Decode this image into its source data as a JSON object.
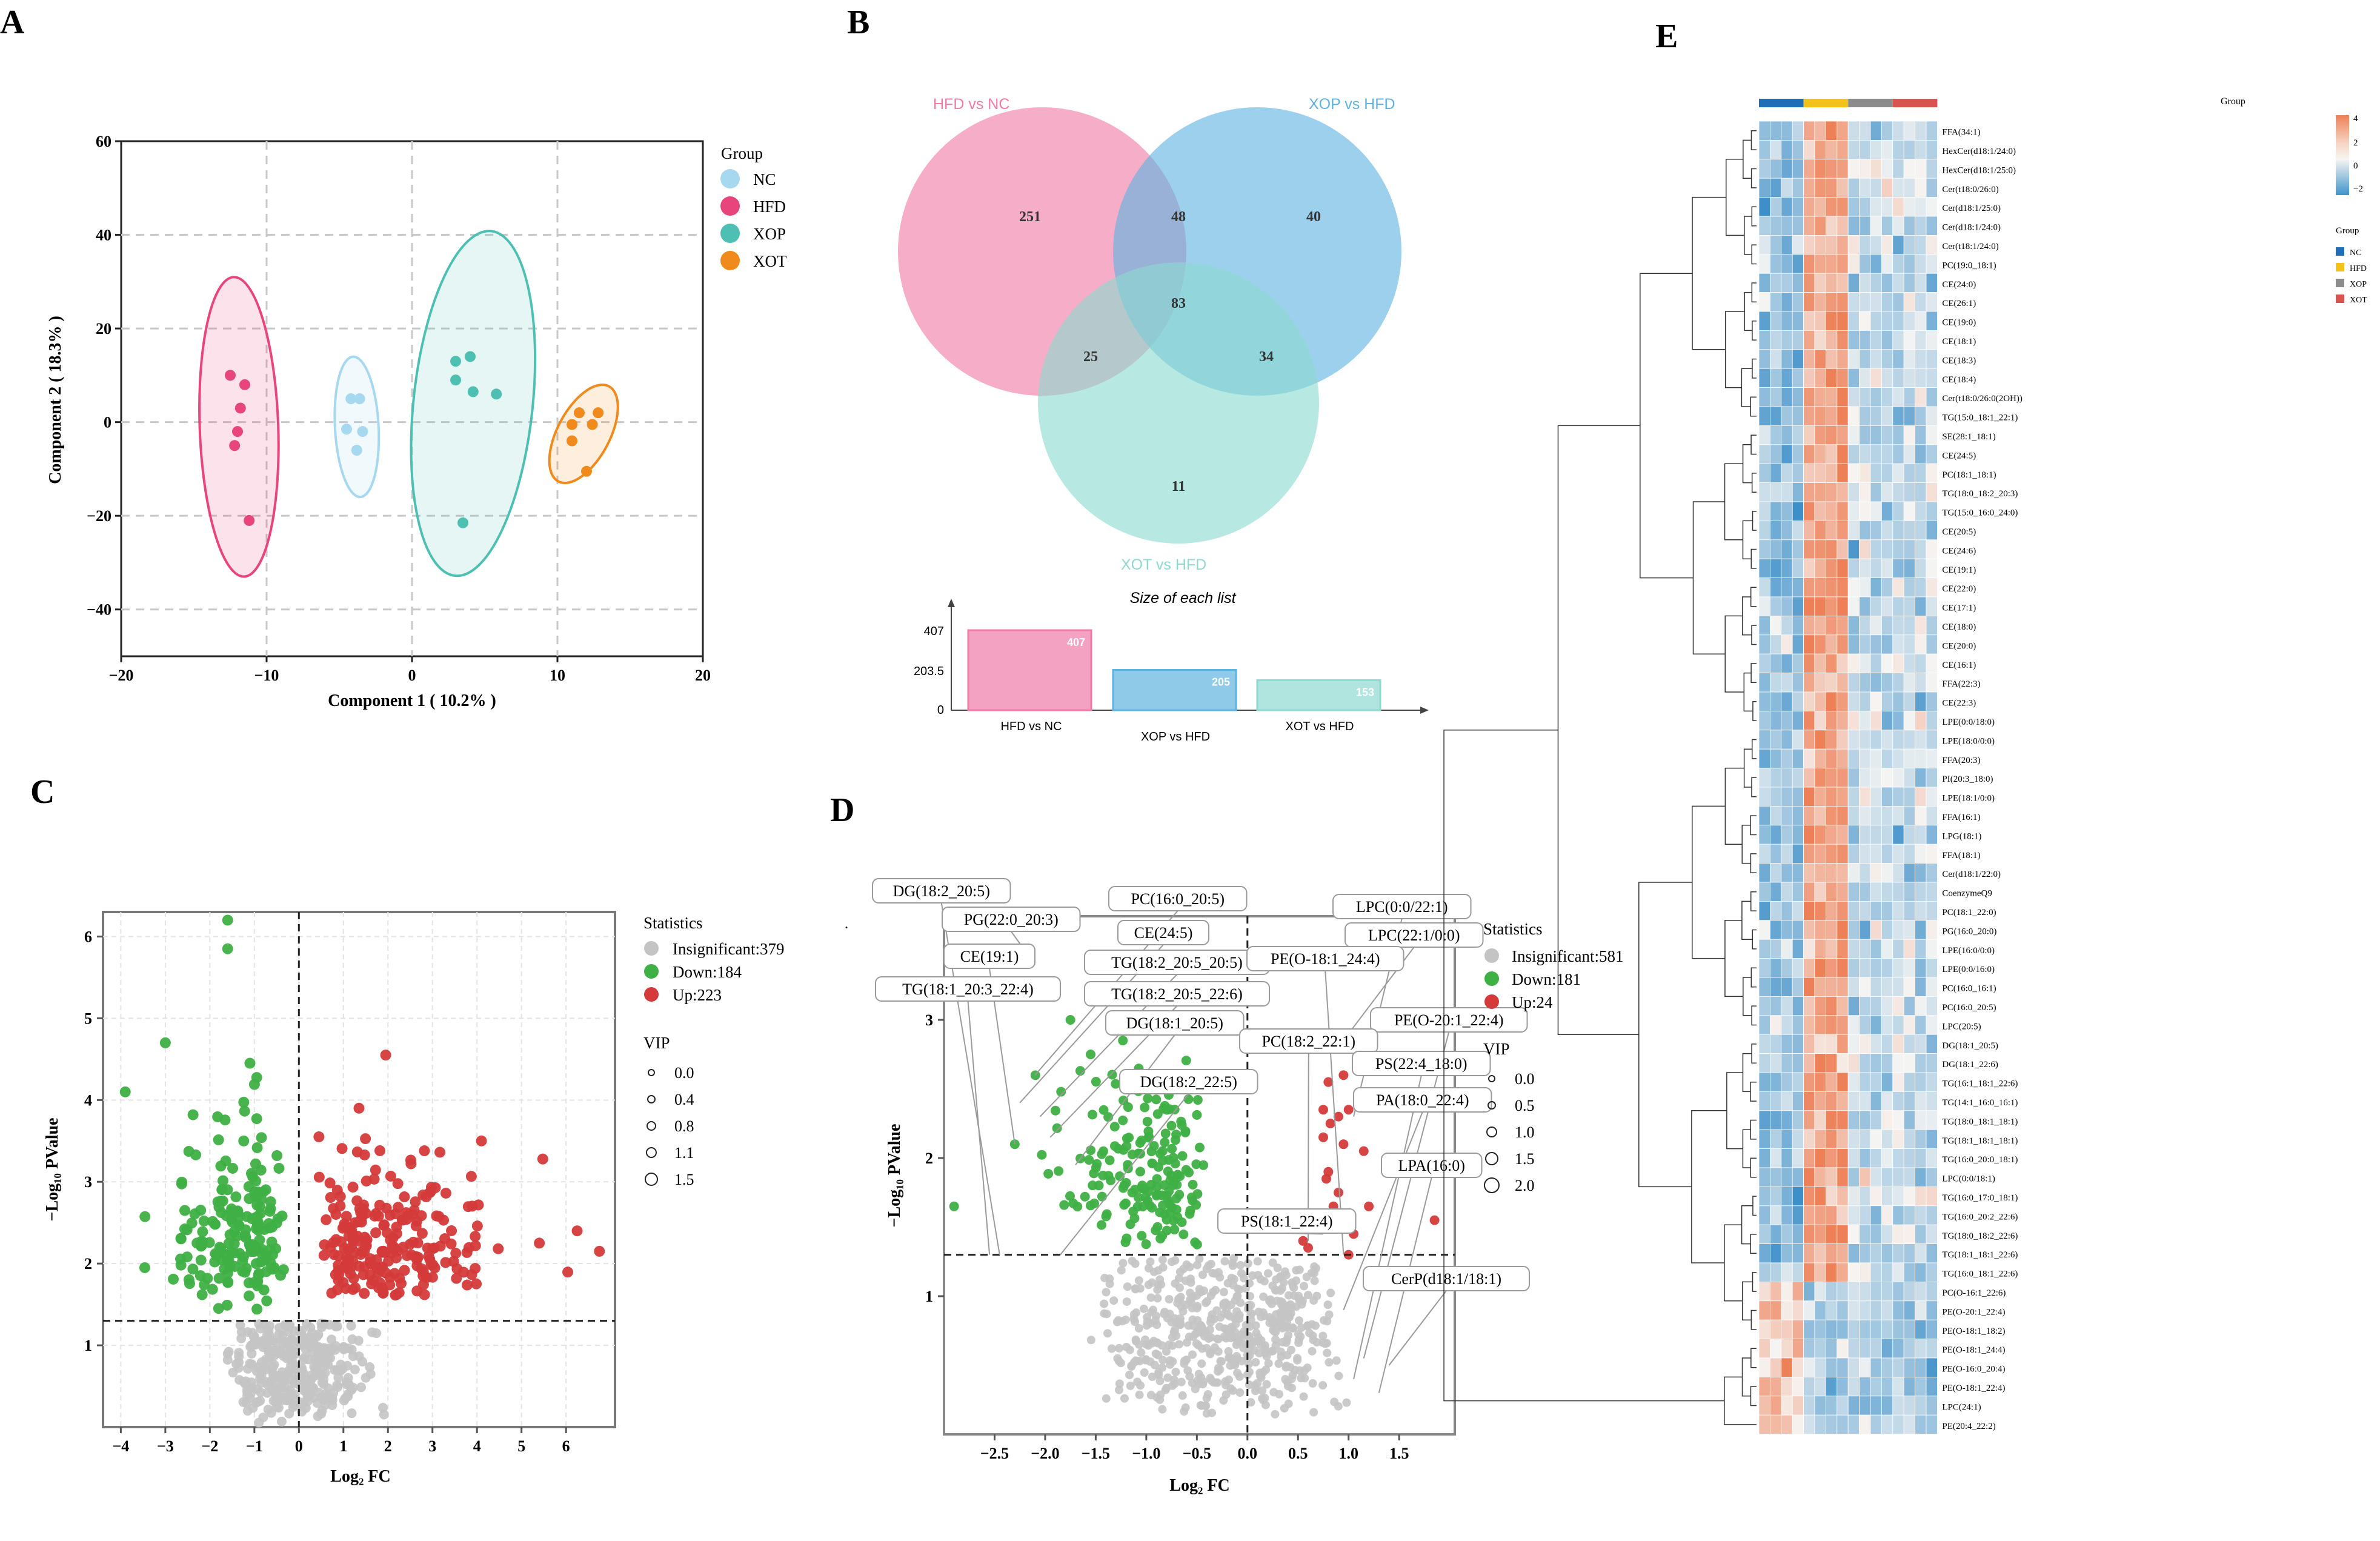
{
  "panel_letters": {
    "a": "A",
    "b": "B",
    "c": "C",
    "d": "D",
    "e": "E"
  },
  "colors": {
    "nc": "#a6d8f0",
    "hfd": "#e8457c",
    "xop": "#4ec0b3",
    "xot": "#f08a1c",
    "up": "#d43a3a",
    "down": "#3fb044",
    "insig": "#c4c4c4",
    "venn_hfd": "#f07ba6",
    "venn_xop": "#5fb3e0",
    "venn_xot": "#8ddad0",
    "hm_nc": "#1f6fb8",
    "hm_hfd": "#f2c21b",
    "hm_xop": "#8c8c8c",
    "hm_xot": "#d9534f"
  },
  "chart_data": [
    {
      "id": "A",
      "type": "scatter",
      "xlabel": "Component 1 ( 10.2% )",
      "ylabel": "Component 2 ( 18.3% )",
      "xlim": [
        -20,
        20
      ],
      "ylim": [
        -50,
        60
      ],
      "xticks": [
        "−20",
        "−10",
        "0",
        "10",
        "20"
      ],
      "yticks": [
        "60",
        "40",
        "20",
        "0",
        "−20",
        "−40"
      ],
      "legend_title": "Group",
      "legend_labels": [
        "NC",
        "HFD",
        "XOP",
        "XOT"
      ],
      "series": [
        {
          "name": "NC",
          "points": [
            [
              -4.2,
              5
            ],
            [
              -3.6,
              5
            ],
            [
              -3.4,
              -2
            ],
            [
              -4.5,
              -1.5
            ],
            [
              -3.8,
              -6
            ]
          ],
          "ellipse": {
            "cx": -3.8,
            "cy": -1,
            "rx": 1.5,
            "ry": 15,
            "angle": -3
          }
        },
        {
          "name": "HFD",
          "points": [
            [
              -12.5,
              10
            ],
            [
              -11.5,
              8
            ],
            [
              -11.8,
              3
            ],
            [
              -12,
              -2
            ],
            [
              -12.2,
              -5
            ],
            [
              -11.2,
              -21
            ]
          ],
          "ellipse": {
            "cx": -11.9,
            "cy": -1,
            "rx": 2.7,
            "ry": 32,
            "angle": -2
          }
        },
        {
          "name": "XOP",
          "points": [
            [
              3,
              13
            ],
            [
              4,
              14
            ],
            [
              3,
              9
            ],
            [
              4.2,
              6.5
            ],
            [
              5.8,
              6
            ],
            [
              3.5,
              -21.5
            ]
          ],
          "ellipse": {
            "cx": 4.2,
            "cy": 4,
            "rx": 4.1,
            "ry": 37,
            "angle": 6
          }
        },
        {
          "name": "XOT",
          "points": [
            [
              11.5,
              2
            ],
            [
              12.8,
              2
            ],
            [
              12.4,
              -0.5
            ],
            [
              11,
              -0.5
            ],
            [
              11,
              -4
            ],
            [
              12,
              -10.5
            ]
          ],
          "ellipse": {
            "cx": 11.8,
            "cy": -2.5,
            "rx": 1.8,
            "ry": 11.5,
            "angle": 28
          }
        }
      ]
    },
    {
      "id": "B",
      "type": "venn",
      "sets": [
        {
          "name": "HFD vs NC",
          "size": 407
        },
        {
          "name": "XOP vs HFD",
          "size": 205
        },
        {
          "name": "XOT vs HFD",
          "size": 153
        }
      ],
      "regions": {
        "hfd_only": "251",
        "xop_only": "40",
        "xot_only": "11",
        "hfd_xop": "48",
        "hfd_xot": "25",
        "xop_xot": "34",
        "all": "83"
      },
      "bar_title": "Size of each list",
      "bar_yticks": [
        "407",
        "203.5",
        "0"
      ],
      "bars": [
        {
          "label": "HFD vs NC",
          "value": 407
        },
        {
          "label": "XOP vs HFD",
          "value": 205
        },
        {
          "label": "XOT vs HFD",
          "value": 153
        }
      ]
    },
    {
      "id": "C",
      "type": "volcano",
      "xlabel": "Log₂ FC",
      "ylabel": "−Log₁₀ PValue",
      "xlim": [
        -4.4,
        7.1
      ],
      "ylim": [
        0,
        6.3
      ],
      "xticks": [
        "−4",
        "−3",
        "−2",
        "−1",
        "0",
        "1",
        "2",
        "3",
        "4",
        "5",
        "6"
      ],
      "yticks": [
        "1",
        "2",
        "3",
        "4",
        "5",
        "6"
      ],
      "threshold_p": 1.3,
      "legend_title": "Statistics",
      "legend_labels": [
        "Insignificant:379",
        "Down:184",
        "Up:223"
      ],
      "vip_title": "VIP",
      "vip_labels": [
        "0.0",
        "0.4",
        "0.8",
        "1.1",
        "1.5"
      ],
      "counts": {
        "insignificant": 379,
        "down": 184,
        "up": 223
      }
    },
    {
      "id": "D",
      "type": "volcano",
      "xlabel": "Log₂ FC",
      "ylabel": "−Log₁₀ PValue",
      "xlim": [
        -3.0,
        2.05
      ],
      "ylim": [
        0,
        3.75
      ],
      "xticks": [
        "−2.5",
        "−2.0",
        "−1.5",
        "−1.0",
        "−0.5",
        "0.0",
        "0.5",
        "1.0",
        "1.5"
      ],
      "yticks": [
        "1",
        "2",
        "3"
      ],
      "threshold_p": 1.3,
      "legend_title": "Statistics",
      "legend_labels": [
        "Insignificant:581",
        "Down:181",
        "Up:24"
      ],
      "vip_title": "VIP",
      "vip_labels": [
        "0.0",
        "0.5",
        "1.0",
        "1.5",
        "2.0"
      ],
      "counts": {
        "insignificant": 581,
        "down": 181,
        "up": 24
      },
      "annotations": [
        "DG(18:2_20:5)",
        "PG(22:0_20:3)",
        "CE(19:1)",
        "TG(18:1_20:3_22:4)",
        "PC(16:0_20:5)",
        "CE(24:5)",
        "TG(18:2_20:5_20:5)",
        "TG(18:2_20:5_22:6)",
        "DG(18:1_20:5)",
        "DG(18:2_22:5)",
        "LPC(0:0/22:1)",
        "LPC(22:1/0:0)",
        "PE(O-18:1_24:4)",
        "PE(O-20:1_22:4)",
        "PC(18:2_22:1)",
        "PS(22:4_18:0)",
        "PA(18:0_22:4)",
        "LPA(16:0)",
        "PS(18:1_22:4)",
        "CerP(d18:1/18:1)"
      ]
    },
    {
      "id": "E",
      "type": "heatmap",
      "group_label": "Group",
      "legend_ticks": [
        "4",
        "2",
        "0",
        "−2"
      ],
      "groups": [
        "NC",
        "HFD",
        "XOP",
        "XOT"
      ],
      "rows": [
        "FFA(34:1)",
        "HexCer(d18:1/24:0)",
        "HexCer(d18:1/25:0)",
        "Cer(t18:0/26:0)",
        "Cer(d18:1/25:0)",
        "Cer(d18:1/24:0)",
        "Cer(t18:1/24:0)",
        "PC(19:0_18:1)",
        "CE(24:0)",
        "CE(26:1)",
        "CE(19:0)",
        "CE(18:1)",
        "CE(18:3)",
        "CE(18:4)",
        "Cer(t18:0/26:0(2OH))",
        "TG(15:0_18:1_22:1)",
        "SE(28:1_18:1)",
        "CE(24:5)",
        "PC(18:1_18:1)",
        "TG(18:0_18:2_20:3)",
        "TG(15:0_16:0_24:0)",
        "CE(20:5)",
        "CE(24:6)",
        "CE(19:1)",
        "CE(22:0)",
        "CE(17:1)",
        "CE(18:0)",
        "CE(20:0)",
        "CE(16:1)",
        "FFA(22:3)",
        "CE(22:3)",
        "LPE(0:0/18:0)",
        "LPE(18:0/0:0)",
        "FFA(20:3)",
        "PI(20:3_18:0)",
        "LPE(18:1/0:0)",
        "FFA(16:1)",
        "LPG(18:1)",
        "FFA(18:1)",
        "Cer(d18:1/22:0)",
        "CoenzymeQ9",
        "PC(18:1_22:0)",
        "PG(16:0_20:0)",
        "LPE(16:0/0:0)",
        "LPE(0:0/16:0)",
        "PC(16:0_16:1)",
        "PC(16:0_20:5)",
        "LPC(20:5)",
        "DG(18:1_20:5)",
        "DG(18:1_22:6)",
        "TG(16:1_18:1_22:6)",
        "TG(14:1_16:0_16:1)",
        "TG(18:0_18:1_18:1)",
        "TG(18:1_18:1_18:1)",
        "TG(16:0_20:0_18:1)",
        "LPC(0:0/18:1)",
        "TG(16:0_17:0_18:1)",
        "TG(16:0_20:2_22:6)",
        "TG(18:0_18:2_22:6)",
        "TG(18:1_18:1_22:6)",
        "TG(16:0_18:1_22:6)",
        "PC(O-16:1_22:6)",
        "PE(O-20:1_22:4)",
        "PE(O-18:1_18:2)",
        "PE(O-18:1_24:4)",
        "PE(O-16:0_20:4)",
        "PE(O-18:1_22:4)",
        "LPC(24:1)",
        "PE(20:4_22:2)"
      ]
    }
  ]
}
